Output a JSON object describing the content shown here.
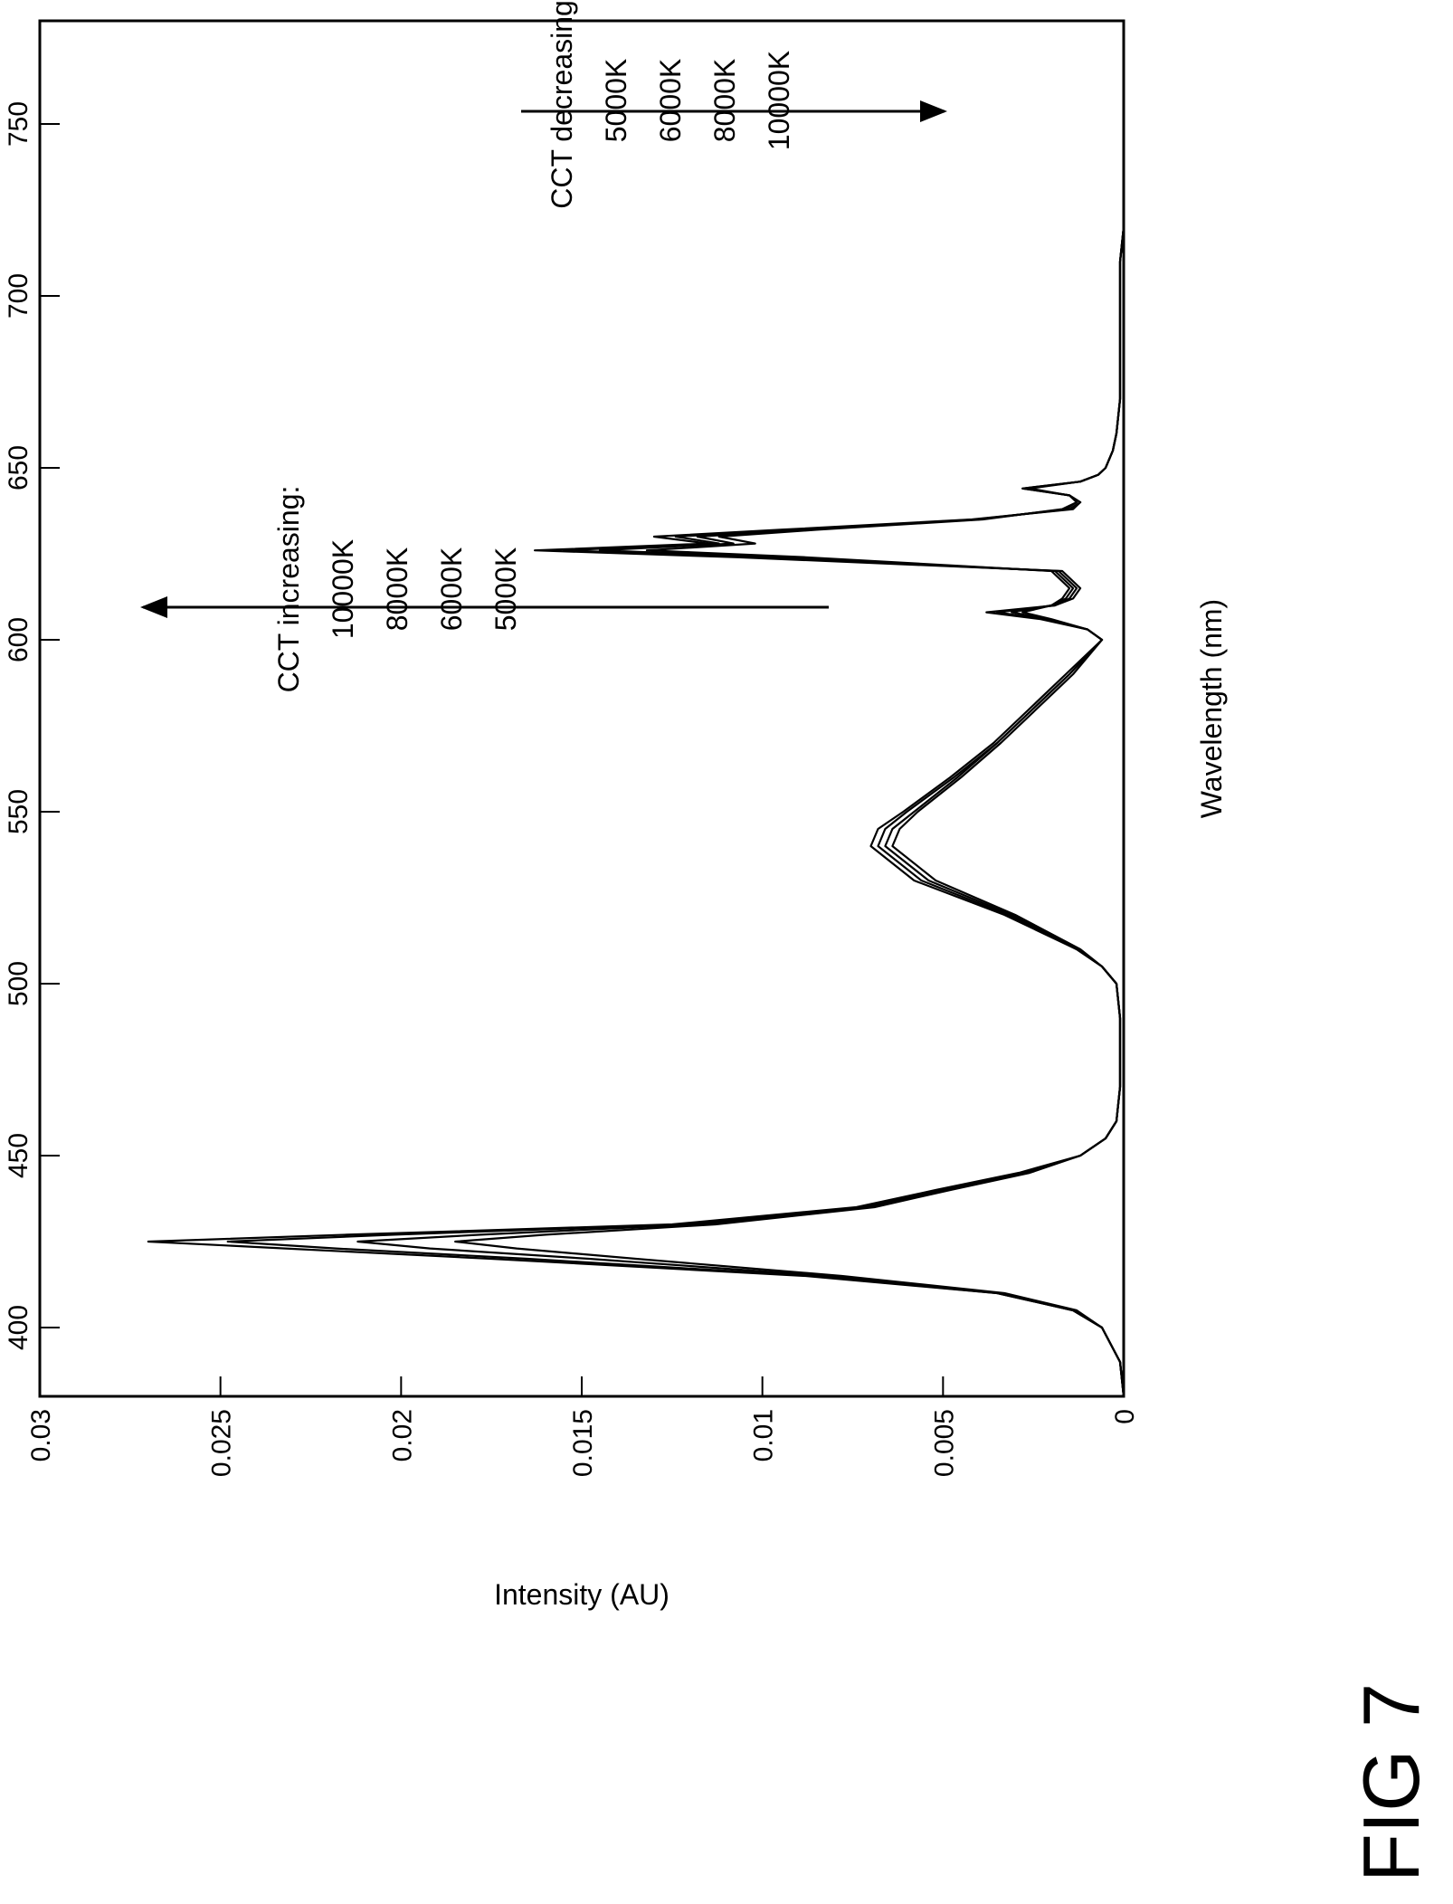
{
  "figure_label": "FIG 7",
  "chart_data": {
    "type": "line",
    "title": "",
    "xlabel": "Wavelength (nm)",
    "ylabel": "Intensity (AU)",
    "xlim": [
      380,
      780
    ],
    "ylim": [
      0,
      0.03
    ],
    "x_ticks": [
      400,
      450,
      500,
      550,
      600,
      650,
      700,
      750
    ],
    "x_tick_labels": [
      "400",
      "450",
      "500",
      "550",
      "600",
      "650",
      "700",
      "750"
    ],
    "y_ticks": [
      0,
      0.005,
      0.01,
      0.015,
      0.02,
      0.025,
      0.03
    ],
    "y_tick_labels": [
      "0",
      "0.005",
      "0.01",
      "0.015",
      "0.02",
      "0.025",
      "0.03"
    ],
    "grid": false,
    "legend": "none",
    "orientation": "rotated 90 degrees counter-clockwise on the page",
    "x": [
      380,
      390,
      400,
      405,
      410,
      415,
      420,
      423,
      425,
      427,
      430,
      435,
      440,
      445,
      450,
      455,
      460,
      470,
      480,
      490,
      500,
      505,
      510,
      520,
      530,
      540,
      545,
      550,
      560,
      570,
      580,
      590,
      600,
      603,
      606,
      608,
      610,
      612,
      615,
      620,
      624,
      626,
      628,
      630,
      632,
      635,
      638,
      640,
      642,
      644,
      646,
      648,
      650,
      655,
      660,
      670,
      680,
      690,
      700,
      710,
      720,
      750,
      780
    ],
    "series": [
      {
        "values": [
          0,
          0.0001,
          0.0006,
          0.0014,
          0.0035,
          0.0088,
          0.0175,
          0.0232,
          0.027,
          0.0215,
          0.0125,
          0.0074,
          0.0052,
          0.0029,
          0.0012,
          0.0005,
          0.0002,
          0.0001,
          0.0001,
          0.0001,
          0.0002,
          0.0006,
          0.0012,
          0.003,
          0.0052,
          0.0064,
          0.0062,
          0.0057,
          0.0045,
          0.0034,
          0.0024,
          0.0014,
          0.0006,
          0.001,
          0.0023,
          0.0038,
          0.0019,
          0.0014,
          0.0012,
          0.0017,
          0.0107,
          0.0163,
          0.0115,
          0.013,
          0.0095,
          0.0042,
          0.0014,
          0.0012,
          0.0015,
          0.0028,
          0.0012,
          0.0007,
          0.0005,
          0.0003,
          0.0002,
          0.0001,
          0.0001,
          0.0001,
          0.0001,
          0.0001,
          0,
          0,
          0
        ]
      },
      {
        "values": [
          0,
          0.0001,
          0.0006,
          0.0014,
          0.0035,
          0.0086,
          0.0165,
          0.0218,
          0.0248,
          0.0202,
          0.0122,
          0.0073,
          0.0051,
          0.0028,
          0.0012,
          0.0005,
          0.0002,
          0.0001,
          0.0001,
          0.0001,
          0.0002,
          0.0006,
          0.0013,
          0.0031,
          0.0054,
          0.0066,
          0.0064,
          0.0058,
          0.0046,
          0.0035,
          0.0025,
          0.0015,
          0.0006,
          0.001,
          0.0022,
          0.0035,
          0.0019,
          0.0015,
          0.0013,
          0.0018,
          0.0101,
          0.0155,
          0.0112,
          0.0124,
          0.0092,
          0.0041,
          0.0015,
          0.0012,
          0.0015,
          0.0028,
          0.0012,
          0.0007,
          0.0005,
          0.0003,
          0.0002,
          0.0001,
          0.0001,
          0.0001,
          0.0001,
          0.0001,
          0,
          0,
          0
        ]
      },
      {
        "values": [
          0,
          0.0001,
          0.0006,
          0.0014,
          0.0034,
          0.0082,
          0.0148,
          0.0192,
          0.0212,
          0.0178,
          0.0118,
          0.0071,
          0.005,
          0.0027,
          0.0012,
          0.0005,
          0.0002,
          0.0001,
          0.0001,
          0.0001,
          0.0002,
          0.0006,
          0.0013,
          0.0032,
          0.0056,
          0.0068,
          0.0066,
          0.006,
          0.0047,
          0.0035,
          0.0025,
          0.0015,
          0.0006,
          0.001,
          0.0021,
          0.0031,
          0.002,
          0.0016,
          0.0014,
          0.0019,
          0.0095,
          0.0145,
          0.0108,
          0.0118,
          0.0088,
          0.004,
          0.0016,
          0.0013,
          0.0015,
          0.0027,
          0.0012,
          0.0007,
          0.0005,
          0.0003,
          0.0002,
          0.0001,
          0.0001,
          0.0001,
          0.0001,
          0.0001,
          0,
          0,
          0
        ]
      },
      {
        "values": [
          0,
          0.0001,
          0.0006,
          0.0013,
          0.0033,
          0.0078,
          0.0135,
          0.0168,
          0.0185,
          0.016,
          0.0113,
          0.0069,
          0.0048,
          0.0026,
          0.0012,
          0.0005,
          0.0002,
          0.0001,
          0.0001,
          0.0001,
          0.0002,
          0.0006,
          0.0013,
          0.0033,
          0.0058,
          0.007,
          0.0068,
          0.0061,
          0.0048,
          0.0036,
          0.0026,
          0.0016,
          0.0006,
          0.001,
          0.002,
          0.0028,
          0.002,
          0.0017,
          0.0015,
          0.002,
          0.0088,
          0.0132,
          0.0102,
          0.0112,
          0.0085,
          0.0039,
          0.0017,
          0.0013,
          0.0015,
          0.0026,
          0.0012,
          0.0007,
          0.0005,
          0.0003,
          0.0002,
          0.0001,
          0.0001,
          0.0001,
          0.0001,
          0.0001,
          0,
          0,
          0
        ]
      }
    ],
    "annotations": [
      {
        "lines": [
          "CCT increasing:",
          "10000K",
          "8000K",
          "6000K",
          "5000K"
        ],
        "arrow": "toward higher intensity"
      },
      {
        "lines": [
          "CCT decreasing:",
          "5000K",
          "6000K",
          "8000K",
          "10000K"
        ],
        "arrow": "toward lower intensity"
      }
    ]
  }
}
